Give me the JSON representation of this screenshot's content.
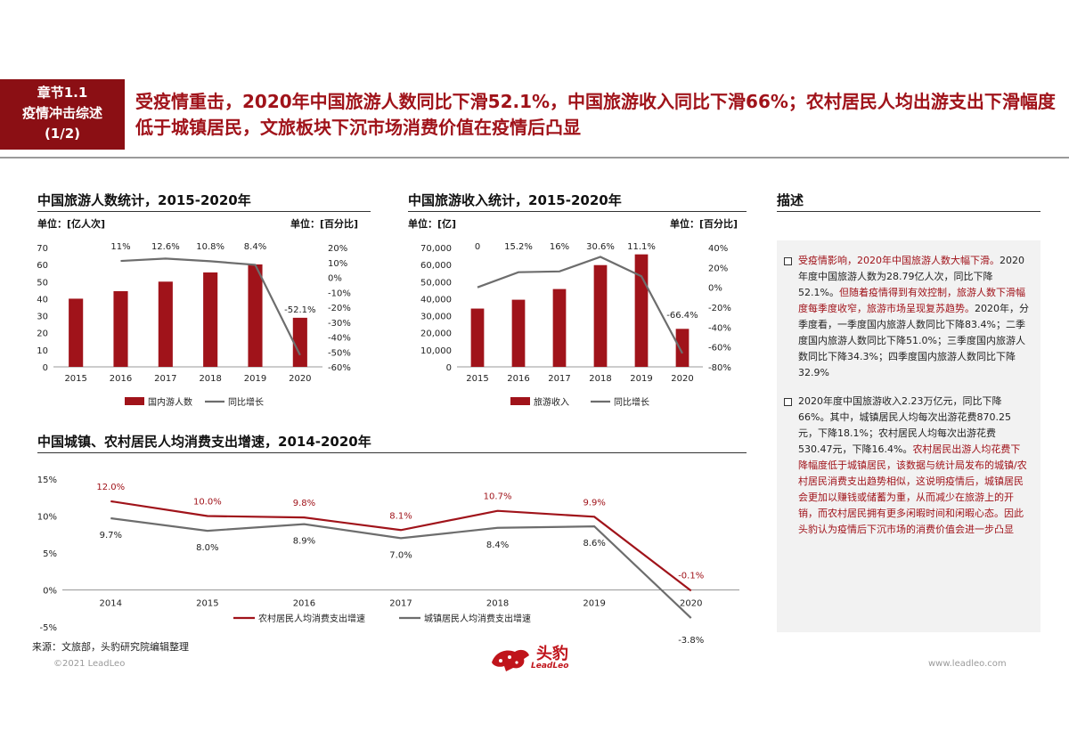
{
  "section": {
    "line1": "章节1.1",
    "line2": "疫情冲击综述",
    "line3": "(1/2)"
  },
  "headline": "受疫情重击，2020年中国旅游人数同比下滑52.1%，中国旅游收入同比下滑66%；农村居民人均出游支出下滑幅度低于城镇居民，文旅板块下沉市场消费价值在疫情后凸显",
  "description": {
    "title": "描述",
    "bullet1": [
      {
        "text": "受疫情影响，2020年中国旅游人数大幅下滑。",
        "red": true
      },
      {
        "text": "2020年度中国旅游人数为28.79亿人次，同比下降52.1%。",
        "red": false
      },
      {
        "text": "但随着疫情得到有效控制，旅游人数下滑幅度每季度收窄，旅游市场呈现复苏趋势。",
        "red": true
      },
      {
        "text": "2020年，分季度看，一季度国内旅游人数同比下降83.4%；二季度国内旅游人数同比下降51.0%；三季度国内旅游人数同比下降34.3%；四季度国内旅游人数同比下降32.9%",
        "red": false
      }
    ],
    "bullet2": [
      {
        "text": "2020年度中国旅游收入2.23万亿元，同比下降66%。其中，城镇居民人均每次出游花费870.25元，下降18.1%；农村居民人均每次出游花费530.47元，下降16.4%。",
        "red": false
      },
      {
        "text": "农村居民出游人均花费下降幅度低于城镇居民，该数据与统计局发布的城镇/农村居民消费支出趋势相似，这说明疫情后，城镇居民会更加以赚钱或储蓄为重，从而减少在旅游上的开销，而农村居民拥有更多闲暇时间和闲暇心态。因此头豹认为疫情后下沉市场的消费价值会进一步凸显",
        "red": true
      }
    ]
  },
  "footer": {
    "source": "来源：文旅部，头豹研究院编辑整理",
    "copyright": "©2021 LeadLeo",
    "website": "www.leadleo.com",
    "logo_text": "头豹",
    "logo_sub": "LeadLeo"
  },
  "colors": {
    "bar": "#A0131A",
    "line_gray": "#6D6D6D",
    "rural_line": "#A0131A"
  },
  "chart_data": [
    {
      "type": "bar",
      "title": "中国旅游人数统计，2015-2020年",
      "unit_left": "单位：[亿人次]",
      "unit_right": "单位：[百分比]",
      "categories": [
        "2015",
        "2016",
        "2017",
        "2018",
        "2019",
        "2020"
      ],
      "series": [
        {
          "name": "国内游人数",
          "type": "bar",
          "values": [
            40,
            44.4,
            50,
            55.4,
            60.1,
            28.8
          ]
        },
        {
          "name": "同比增长",
          "type": "line",
          "values": [
            null,
            11,
            12.6,
            10.8,
            8.4,
            -52.1
          ],
          "labels": [
            "",
            "11%",
            "12.6%",
            "10.8%",
            "8.4%",
            "-52.1%"
          ]
        }
      ],
      "ylim_left": [
        0,
        70
      ],
      "yticks_left": [
        "0",
        "10",
        "20",
        "30",
        "40",
        "50",
        "60",
        "70"
      ],
      "ylim_right": [
        -60,
        20
      ],
      "yticks_right": [
        "-60%",
        "-50%",
        "-40%",
        "-30%",
        "-20%",
        "-10%",
        "0%",
        "10%",
        "20%"
      ]
    },
    {
      "type": "bar",
      "title": "中国旅游收入统计，2015-2020年",
      "unit_left": "单位：[亿]",
      "unit_right": "单位：[百分比]",
      "categories": [
        "2015",
        "2016",
        "2017",
        "2018",
        "2019",
        "2020"
      ],
      "series": [
        {
          "name": "旅游收入",
          "type": "bar",
          "values": [
            34195,
            39390,
            45661,
            59700,
            66000,
            22300
          ]
        },
        {
          "name": "同比增长",
          "type": "line",
          "values": [
            0,
            15.2,
            16,
            30.6,
            11.1,
            -66.4
          ],
          "labels": [
            "0",
            "15.2%",
            "16%",
            "30.6%",
            "11.1%",
            "-66.4%"
          ]
        }
      ],
      "ylim_left": [
        0,
        70000
      ],
      "yticks_left": [
        "0",
        "10,000",
        "20,000",
        "30,000",
        "40,000",
        "50,000",
        "60,000",
        "70,000"
      ],
      "ylim_right": [
        -80,
        40
      ],
      "yticks_right": [
        "-80%",
        "-60%",
        "-40%",
        "-20%",
        "0%",
        "20%",
        "40%"
      ]
    },
    {
      "type": "line",
      "title": "中国城镇、农村居民人均消费支出增速，2014-2020年",
      "categories": [
        "2014",
        "2015",
        "2016",
        "2017",
        "2018",
        "2019",
        "2020"
      ],
      "series": [
        {
          "name": "农村居民人均消费支出增速",
          "values": [
            12.0,
            10.0,
            9.8,
            8.1,
            10.7,
            9.9,
            -0.1
          ],
          "labels": [
            "12.0%",
            "10.0%",
            "9.8%",
            "8.1%",
            "10.7%",
            "9.9%",
            "-0.1%"
          ]
        },
        {
          "name": "城镇居民人均消费支出增速",
          "values": [
            9.7,
            8.0,
            8.9,
            7.0,
            8.4,
            8.6,
            -3.8
          ],
          "labels": [
            "9.7%",
            "8.0%",
            "8.9%",
            "7.0%",
            "8.4%",
            "8.6%",
            "-3.8%"
          ]
        }
      ],
      "ylim": [
        -5,
        15
      ],
      "yticks": [
        "-5%",
        "0%",
        "5%",
        "10%",
        "15%"
      ]
    }
  ]
}
